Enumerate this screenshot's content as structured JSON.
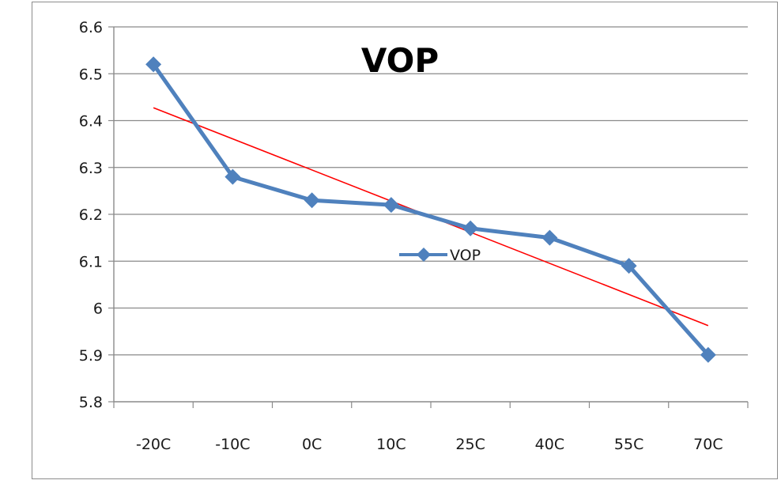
{
  "chart_data": {
    "type": "line",
    "title": "VOP",
    "xlabel": "",
    "ylabel": "",
    "categories": [
      "-20C",
      "-10C",
      "0C",
      "10C",
      "25C",
      "40C",
      "55C",
      "70C"
    ],
    "ylim": [
      5.8,
      6.6
    ],
    "yticks": [
      "6.6",
      "6.5",
      "6.4",
      "6.3",
      "6.2",
      "6.1",
      "6",
      "5.9",
      "5.8"
    ],
    "grid": true,
    "legend_position": "inside-center",
    "series": [
      {
        "name": "VOP",
        "values": [
          6.52,
          6.28,
          6.23,
          6.22,
          6.17,
          6.15,
          6.09,
          5.9
        ],
        "color": "#4f81bd",
        "marker": "diamond"
      }
    ],
    "trendline": {
      "type": "linear",
      "color": "#ff0000"
    }
  }
}
